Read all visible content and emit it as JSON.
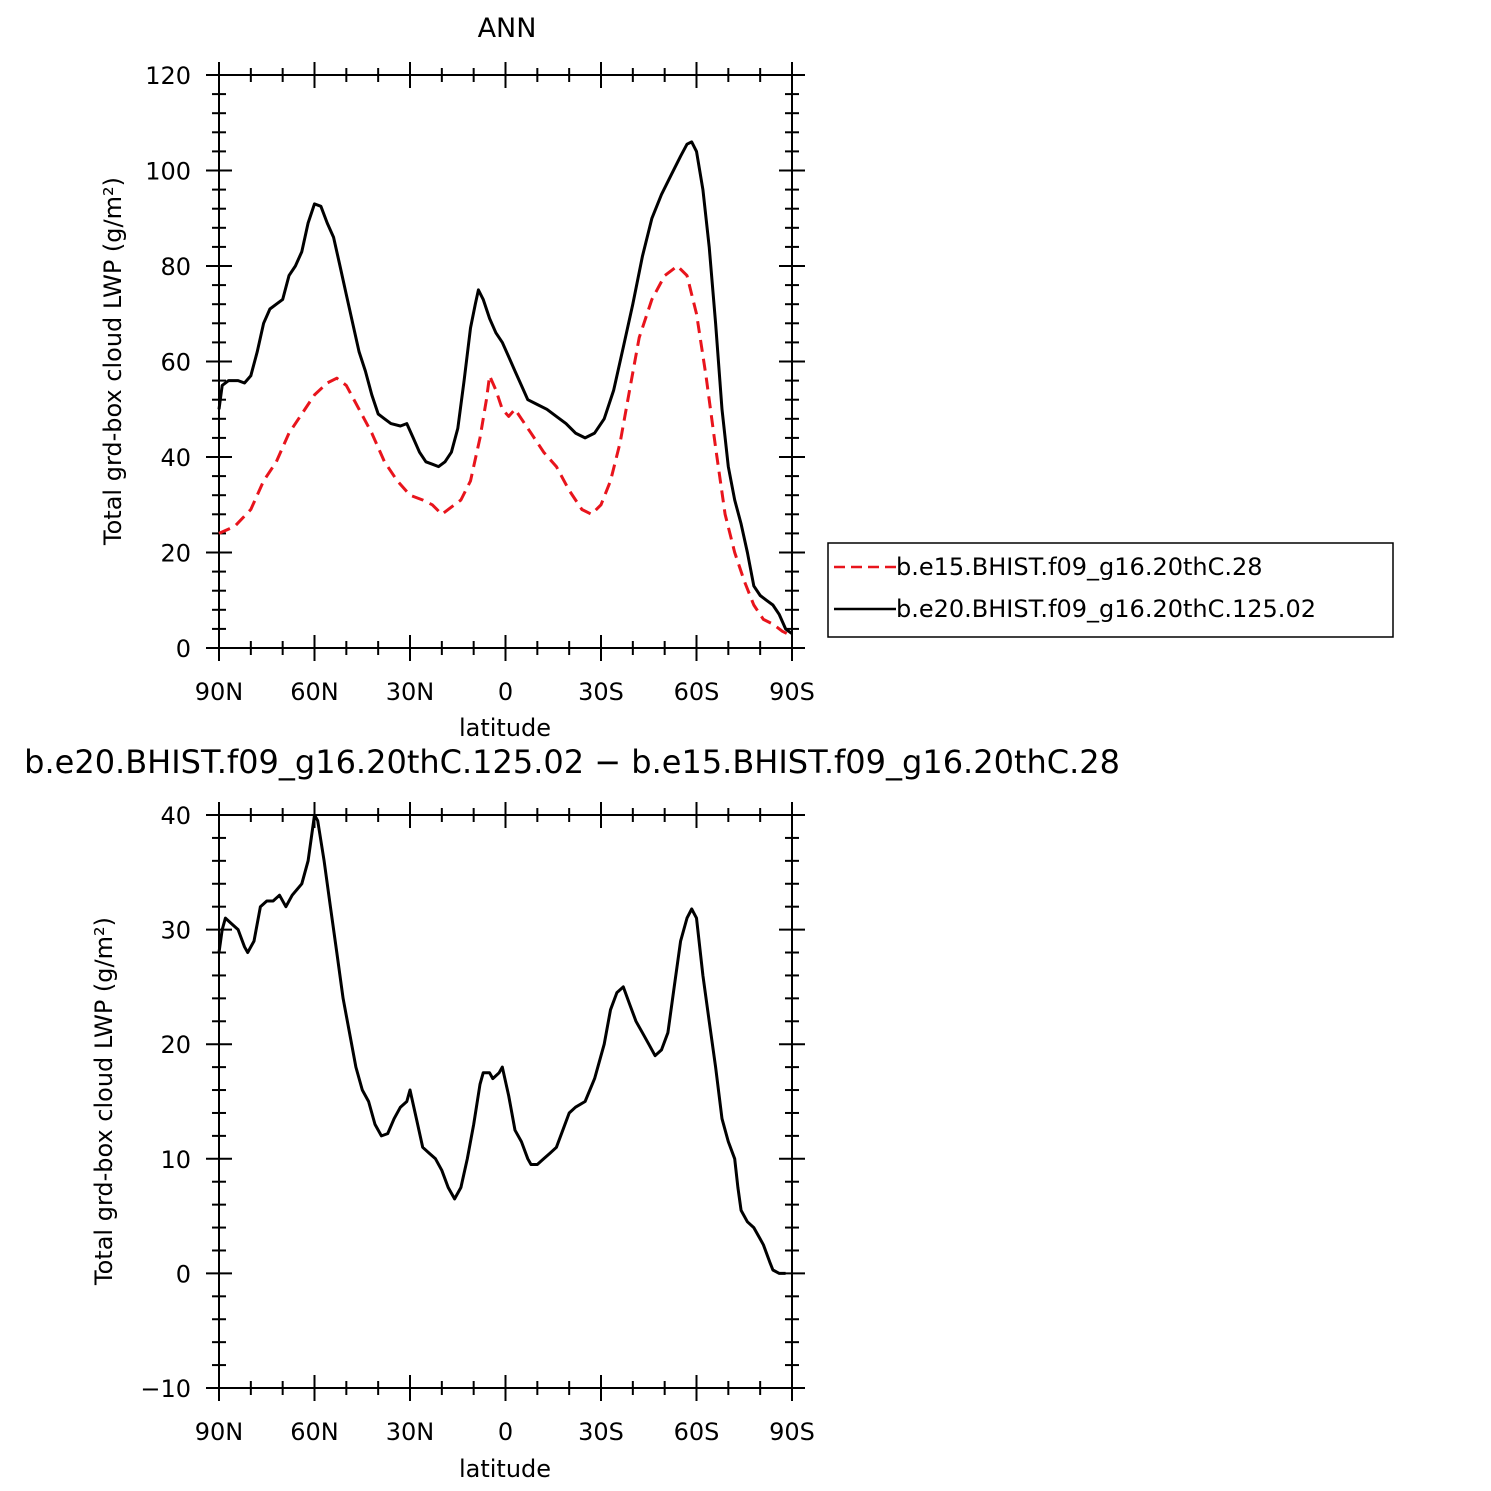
{
  "chart_data": [
    {
      "type": "line",
      "title": "ANN",
      "xlabel": "latitude",
      "ylabel": "Total grd-box cloud LWP (g/m²)",
      "xlim": [
        -90,
        90
      ],
      "xaxis_direction": "90N on left to 90S on right",
      "ylim": [
        0,
        120
      ],
      "x_ticks": [
        -90,
        -60,
        -30,
        0,
        30,
        60,
        90
      ],
      "x_tick_labels": [
        "90N",
        "60N",
        "30N",
        "0",
        "30S",
        "60S",
        "90S"
      ],
      "y_ticks": [
        0,
        20,
        40,
        60,
        80,
        100,
        120
      ],
      "y_tick_labels": [
        "0",
        "20",
        "40",
        "60",
        "80",
        "100",
        "120"
      ],
      "legend_position": "right",
      "series": [
        {
          "name": "b.e15.BHIST.f09_g16.20thC.28",
          "color": "#e8141c",
          "dash": "dashed",
          "points": [
            [
              -90,
              24
            ],
            [
              -85,
              25.5
            ],
            [
              -80,
              29
            ],
            [
              -76,
              35
            ],
            [
              -72,
              39
            ],
            [
              -68,
              45
            ],
            [
              -64,
              49
            ],
            [
              -60,
              53
            ],
            [
              -56,
              55.5
            ],
            [
              -53,
              56.5
            ],
            [
              -50,
              55
            ],
            [
              -46,
              50
            ],
            [
              -42,
              45
            ],
            [
              -38,
              39
            ],
            [
              -34,
              35
            ],
            [
              -30,
              32
            ],
            [
              -26,
              31
            ],
            [
              -23,
              30
            ],
            [
              -20,
              28
            ],
            [
              -17,
              29.5
            ],
            [
              -14,
              31
            ],
            [
              -11,
              35
            ],
            [
              -8,
              44
            ],
            [
              -6,
              52
            ],
            [
              -5,
              57
            ],
            [
              -3,
              54
            ],
            [
              -1,
              50
            ],
            [
              1,
              48.5
            ],
            [
              3,
              50
            ],
            [
              5,
              48
            ],
            [
              8,
              45
            ],
            [
              12,
              41
            ],
            [
              16,
              38
            ],
            [
              20,
              33
            ],
            [
              24,
              29
            ],
            [
              27,
              28
            ],
            [
              30,
              30
            ],
            [
              33,
              35
            ],
            [
              36,
              43
            ],
            [
              39,
              54
            ],
            [
              42,
              65
            ],
            [
              46,
              73
            ],
            [
              50,
              78
            ],
            [
              54,
              80
            ],
            [
              57,
              78
            ],
            [
              60,
              70
            ],
            [
              63,
              57
            ],
            [
              66,
              42
            ],
            [
              69,
              28
            ],
            [
              72,
              20
            ],
            [
              75,
              14
            ],
            [
              78,
              9
            ],
            [
              81,
              6
            ],
            [
              84,
              5
            ],
            [
              87,
              3.5
            ],
            [
              90,
              2.5
            ]
          ]
        },
        {
          "name": "b.e20.BHIST.f09_g16.20thC.125.02",
          "color": "#000000",
          "dash": "solid",
          "points": [
            [
              -90,
              50
            ],
            [
              -89,
              55
            ],
            [
              -87,
              56
            ],
            [
              -84,
              56
            ],
            [
              -82,
              55.5
            ],
            [
              -80,
              57
            ],
            [
              -78,
              62
            ],
            [
              -76,
              68
            ],
            [
              -74,
              71
            ],
            [
              -72,
              72
            ],
            [
              -70,
              73
            ],
            [
              -68,
              78
            ],
            [
              -66,
              80
            ],
            [
              -64,
              83
            ],
            [
              -62,
              89
            ],
            [
              -60,
              93
            ],
            [
              -58,
              92.5
            ],
            [
              -56,
              89
            ],
            [
              -54,
              86
            ],
            [
              -52,
              80
            ],
            [
              -50,
              74
            ],
            [
              -48,
              68
            ],
            [
              -46,
              62
            ],
            [
              -44,
              58
            ],
            [
              -42,
              53
            ],
            [
              -40,
              49
            ],
            [
              -38,
              48
            ],
            [
              -36,
              47
            ],
            [
              -33,
              46.5
            ],
            [
              -31,
              47
            ],
            [
              -29,
              44
            ],
            [
              -27,
              41
            ],
            [
              -25,
              39
            ],
            [
              -23,
              38.5
            ],
            [
              -21,
              38
            ],
            [
              -19,
              39
            ],
            [
              -17,
              41
            ],
            [
              -15,
              46
            ],
            [
              -13,
              56
            ],
            [
              -11,
              67
            ],
            [
              -9.5,
              72
            ],
            [
              -8.5,
              75
            ],
            [
              -7,
              73
            ],
            [
              -5,
              69
            ],
            [
              -3,
              66
            ],
            [
              -1,
              64
            ],
            [
              1,
              61
            ],
            [
              3,
              58
            ],
            [
              5,
              55
            ],
            [
              7,
              52
            ],
            [
              10,
              51
            ],
            [
              13,
              50
            ],
            [
              16,
              48.5
            ],
            [
              19,
              47
            ],
            [
              22,
              45
            ],
            [
              25,
              44
            ],
            [
              28,
              45
            ],
            [
              31,
              48
            ],
            [
              34,
              54
            ],
            [
              37,
              63
            ],
            [
              40,
              72
            ],
            [
              43,
              82
            ],
            [
              46,
              90
            ],
            [
              49,
              95
            ],
            [
              52,
              99
            ],
            [
              55,
              103
            ],
            [
              57,
              105.5
            ],
            [
              58.5,
              106
            ],
            [
              60,
              104
            ],
            [
              62,
              96
            ],
            [
              64,
              84
            ],
            [
              66,
              68
            ],
            [
              68,
              50
            ],
            [
              70,
              38
            ],
            [
              72,
              31
            ],
            [
              74,
              26
            ],
            [
              76,
              20
            ],
            [
              78,
              13
            ],
            [
              80,
              11
            ],
            [
              82,
              10
            ],
            [
              84,
              9
            ],
            [
              86,
              7
            ],
            [
              88,
              4
            ],
            [
              90,
              3
            ]
          ]
        }
      ]
    },
    {
      "type": "line",
      "title": "b.e20.BHIST.f09_g16.20thC.125.02 − b.e15.BHIST.f09_g16.20thC.28",
      "xlabel": "latitude",
      "ylabel": "Total grd-box cloud LWP (g/m²)",
      "xlim": [
        -90,
        90
      ],
      "xaxis_direction": "90N on left to 90S on right",
      "ylim": [
        -10,
        40
      ],
      "x_ticks": [
        -90,
        -60,
        -30,
        0,
        30,
        60,
        90
      ],
      "x_tick_labels": [
        "90N",
        "60N",
        "30N",
        "0",
        "30S",
        "60S",
        "90S"
      ],
      "y_ticks": [
        -10,
        0,
        10,
        20,
        30,
        40
      ],
      "y_tick_labels": [
        "−10",
        "0",
        "10",
        "20",
        "30",
        "40"
      ],
      "series": [
        {
          "color": "#000000",
          "dash": "solid",
          "points": [
            [
              -90,
              28
            ],
            [
              -89,
              30
            ],
            [
              -88,
              31
            ],
            [
              -86,
              30.5
            ],
            [
              -84,
              30
            ],
            [
              -82,
              28.5
            ],
            [
              -81,
              28
            ],
            [
              -79,
              29
            ],
            [
              -77,
              32
            ],
            [
              -75,
              32.5
            ],
            [
              -73,
              32.5
            ],
            [
              -71,
              33
            ],
            [
              -69,
              32
            ],
            [
              -67,
              33
            ],
            [
              -64,
              34
            ],
            [
              -62,
              36
            ],
            [
              -61,
              38
            ],
            [
              -60,
              40
            ],
            [
              -59,
              39.5
            ],
            [
              -57,
              36
            ],
            [
              -55,
              32
            ],
            [
              -53,
              28
            ],
            [
              -51,
              24
            ],
            [
              -49,
              21
            ],
            [
              -47,
              18
            ],
            [
              -45,
              16
            ],
            [
              -43,
              15
            ],
            [
              -41,
              13
            ],
            [
              -39,
              12
            ],
            [
              -37,
              12.2
            ],
            [
              -35,
              13.5
            ],
            [
              -33,
              14.5
            ],
            [
              -31,
              15
            ],
            [
              -30,
              16
            ],
            [
              -28,
              13.5
            ],
            [
              -26,
              11
            ],
            [
              -24,
              10.5
            ],
            [
              -22,
              10
            ],
            [
              -20,
              9
            ],
            [
              -18,
              7.5
            ],
            [
              -16,
              6.5
            ],
            [
              -14,
              7.5
            ],
            [
              -12,
              10
            ],
            [
              -10,
              13
            ],
            [
              -8,
              16.5
            ],
            [
              -7,
              17.5
            ],
            [
              -5,
              17.5
            ],
            [
              -4,
              17
            ],
            [
              -2,
              17.5
            ],
            [
              -1,
              18
            ],
            [
              1,
              15.5
            ],
            [
              3,
              12.5
            ],
            [
              5,
              11.5
            ],
            [
              7,
              10
            ],
            [
              8,
              9.5
            ],
            [
              10,
              9.5
            ],
            [
              12,
              10
            ],
            [
              14,
              10.5
            ],
            [
              16,
              11
            ],
            [
              18,
              12.5
            ],
            [
              20,
              14
            ],
            [
              22,
              14.5
            ],
            [
              25,
              15
            ],
            [
              28,
              17
            ],
            [
              31,
              20
            ],
            [
              33,
              23
            ],
            [
              35,
              24.5
            ],
            [
              37,
              25
            ],
            [
              39,
              23.5
            ],
            [
              41,
              22
            ],
            [
              43,
              21
            ],
            [
              45,
              20
            ],
            [
              47,
              19
            ],
            [
              49,
              19.5
            ],
            [
              51,
              21
            ],
            [
              53,
              25
            ],
            [
              55,
              29
            ],
            [
              57,
              31
            ],
            [
              58.5,
              31.8
            ],
            [
              60,
              31
            ],
            [
              62,
              26
            ],
            [
              64,
              22
            ],
            [
              66,
              18
            ],
            [
              68,
              13.5
            ],
            [
              70,
              11.5
            ],
            [
              72,
              10
            ],
            [
              73,
              7.5
            ],
            [
              74,
              5.5
            ],
            [
              76,
              4.5
            ],
            [
              78,
              4
            ],
            [
              80,
              3
            ],
            [
              81,
              2.5
            ],
            [
              83,
              1
            ],
            [
              84,
              0.3
            ],
            [
              86,
              0
            ],
            [
              88,
              0
            ]
          ]
        }
      ]
    }
  ],
  "colors": {
    "series_red": "#e8141c",
    "series_black": "#000000",
    "axes": "#000000",
    "background": "#ffffff"
  }
}
